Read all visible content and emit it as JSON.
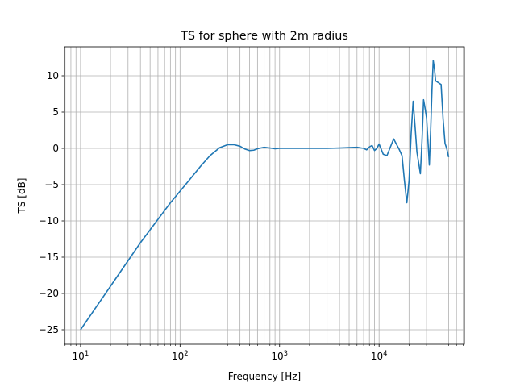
{
  "chart_data": {
    "type": "line",
    "title": "TS for sphere with 2m radius",
    "xlabel": "Frequency [Hz]",
    "ylabel": "TS [dB]",
    "xscale": "log",
    "xlim": [
      6.9,
      72000
    ],
    "ylim": [
      -27,
      14
    ],
    "grid": "both (major and minor x, major y)",
    "x_ticks": [
      {
        "base": "10",
        "exp": "1"
      },
      {
        "base": "10",
        "exp": "2"
      },
      {
        "base": "10",
        "exp": "3"
      },
      {
        "base": "10",
        "exp": "4"
      }
    ],
    "y_ticks": [
      "−25",
      "−20",
      "−15",
      "−10",
      "−5",
      "0",
      "5",
      "10"
    ],
    "line_color": "#1f77b4",
    "series": [
      {
        "x": [
          10,
          20,
          40,
          80,
          120,
          160,
          200,
          250,
          300,
          350,
          400,
          450,
          500,
          550,
          600,
          700,
          800,
          900,
          1000,
          1200,
          1500,
          2000,
          3000,
          4000,
          5000,
          6000,
          7000,
          7500,
          8000,
          8500,
          9000,
          9500,
          10000,
          11000,
          12000,
          14000,
          16000,
          17000,
          18000,
          19000,
          20000,
          21000,
          22000,
          23000,
          24000,
          25000,
          26000,
          27000,
          28000,
          29000,
          30000,
          31000,
          32000,
          33000,
          34000,
          35000,
          36000,
          37000,
          38000,
          40000,
          42000,
          44000,
          46000,
          48000,
          50000
        ],
        "y": [
          -25.0,
          -19.0,
          -13.0,
          -7.5,
          -4.6,
          -2.5,
          -1.0,
          0.1,
          0.5,
          0.5,
          0.3,
          -0.1,
          -0.3,
          -0.25,
          -0.05,
          0.15,
          0.05,
          -0.05,
          0.0,
          0.0,
          0.0,
          0.0,
          0.0,
          0.05,
          0.1,
          0.15,
          0.0,
          -0.2,
          0.2,
          0.4,
          -0.3,
          0.0,
          0.6,
          -0.8,
          -1.0,
          1.3,
          -0.2,
          -1.0,
          -4.5,
          -7.5,
          -4.5,
          2.0,
          6.5,
          3.0,
          -0.5,
          -2.0,
          -3.5,
          1.0,
          6.7,
          5.5,
          4.2,
          1.0,
          -2.3,
          2.5,
          8.0,
          12.1,
          11.0,
          9.3,
          9.2,
          9.0,
          8.8,
          4.0,
          0.7,
          -0.1,
          -1.2
        ]
      }
    ]
  }
}
